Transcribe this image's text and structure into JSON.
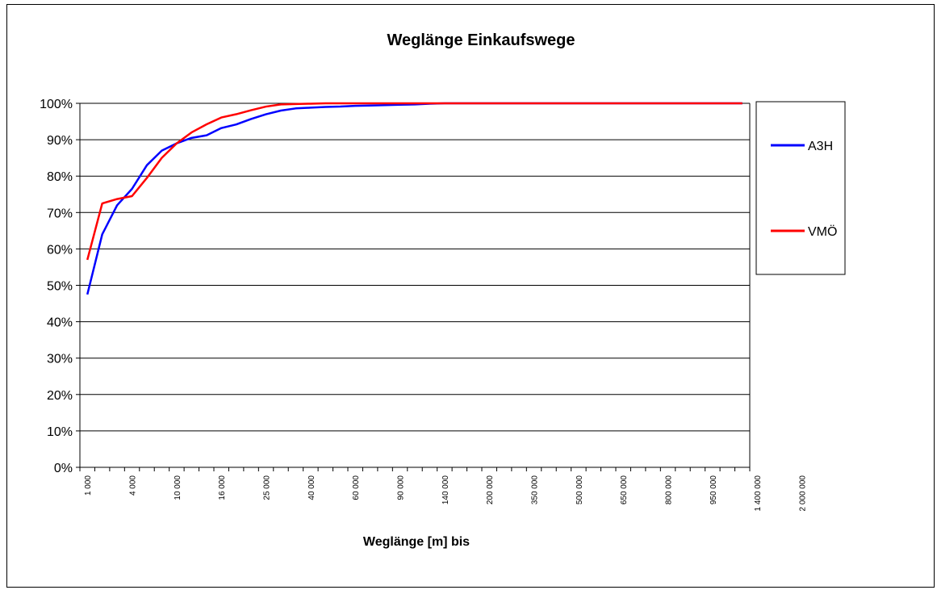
{
  "chart_data": {
    "type": "line",
    "title": "Weglänge Einkaufswege",
    "xlabel": "Weglänge [m] bis",
    "ylabel": "",
    "ylim": [
      0,
      100
    ],
    "y_ticks": [
      "0%",
      "10%",
      "20%",
      "30%",
      "40%",
      "50%",
      "60%",
      "70%",
      "80%",
      "90%",
      "100%"
    ],
    "grid": true,
    "legend_position": "right",
    "x_tick_labels": [
      "1 000",
      "4 000",
      "10 000",
      "16 000",
      "25 000",
      "40 000",
      "60 000",
      "90 000",
      "140 000",
      "200 000",
      "350 000",
      "500 000",
      "650 000",
      "800 000",
      "950 000",
      "1 400 000",
      "2 000 000"
    ],
    "category_count": 45,
    "series": [
      {
        "name": "A3H",
        "color": "#0000ff",
        "values": [
          47.5,
          64,
          72,
          76.5,
          83,
          87,
          89,
          90.5,
          91.2,
          93.2,
          94.2,
          95.7,
          97,
          98,
          98.6,
          98.8,
          99,
          99.1,
          99.3,
          99.4,
          99.5,
          99.6,
          99.7,
          99.9,
          100,
          100,
          100,
          100,
          100,
          100,
          100,
          100,
          100,
          100,
          100,
          100,
          100,
          100,
          100,
          100,
          100,
          100,
          100,
          100,
          100
        ]
      },
      {
        "name": "VMÖ",
        "color": "#ff0000",
        "values": [
          57,
          72.5,
          73.7,
          74.5,
          79.5,
          85,
          89,
          92,
          94.2,
          96.1,
          97,
          98.1,
          99.1,
          99.7,
          99.8,
          99.9,
          100,
          100,
          100,
          100,
          100,
          100,
          100,
          100,
          100,
          100,
          100,
          100,
          100,
          100,
          100,
          100,
          100,
          100,
          100,
          100,
          100,
          100,
          100,
          100,
          100,
          100,
          100,
          100,
          100
        ]
      }
    ]
  }
}
